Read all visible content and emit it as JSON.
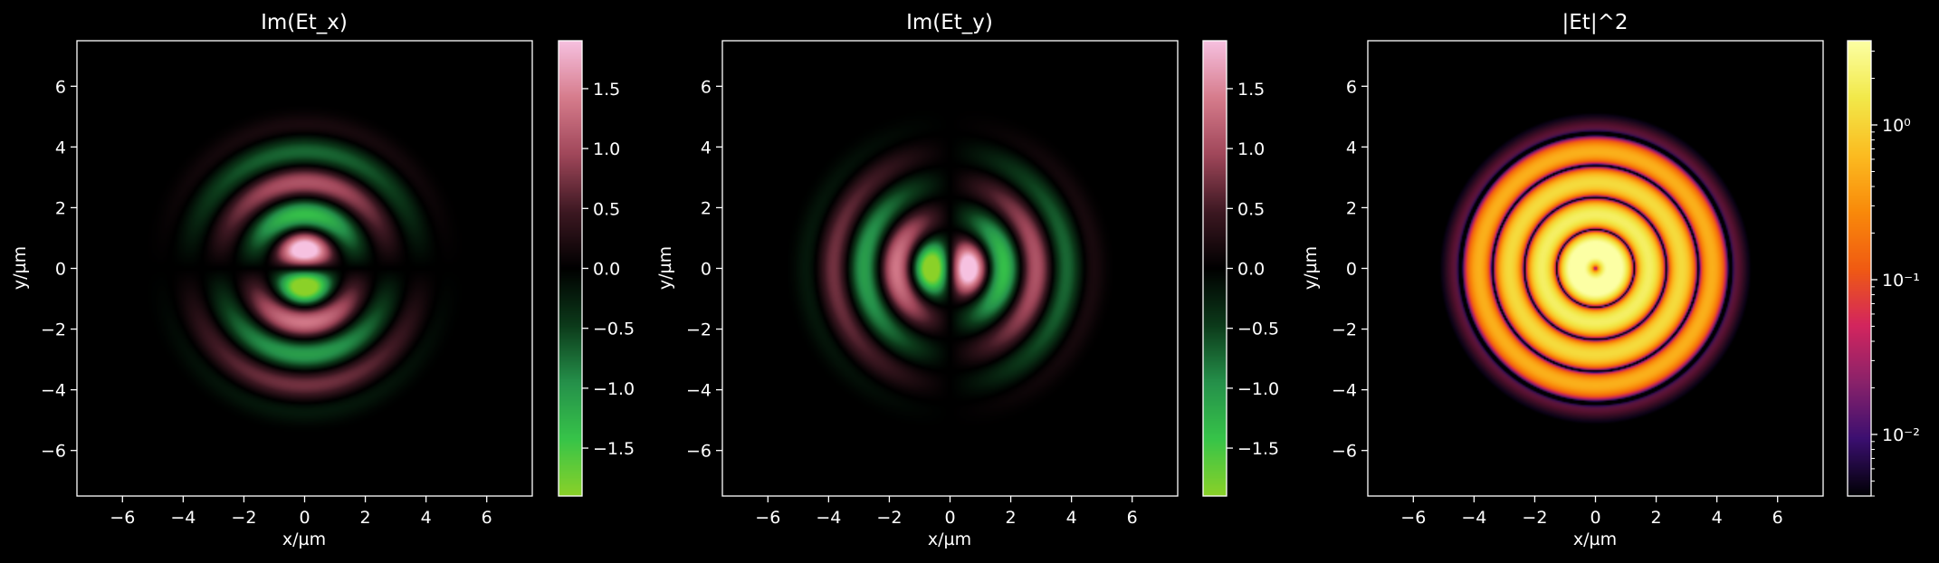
{
  "colors": {
    "background": "#000000",
    "foreground": "#ffffff",
    "piyg": [
      "#8bd128",
      "#37c449",
      "#25904a",
      "#0c3a1a",
      "#000000",
      "#3d1822",
      "#a0475a",
      "#d67c8c",
      "#f6c1e0"
    ],
    "inferno_like": [
      "#000004",
      "#3b0f70",
      "#8a226a",
      "#d3255e",
      "#f05b12",
      "#f98a0a",
      "#fbbc21",
      "#f2e94a",
      "#fcffa4"
    ]
  },
  "chart_data": [
    {
      "type": "heatmap",
      "title": "Im(Et_x)",
      "xlabel": "x/µm",
      "ylabel": "y/µm",
      "xlim": [
        -7.5,
        7.5
      ],
      "ylim": [
        -7.5,
        7.5
      ],
      "xticks": [
        -6,
        -4,
        -2,
        0,
        2,
        4,
        6
      ],
      "yticks": [
        -6,
        -4,
        -2,
        0,
        2,
        4,
        6
      ],
      "field": "im_ex",
      "colormap": "PiYG_r",
      "colorbar": {
        "scale": "linear",
        "range": [
          -1.9,
          1.9
        ],
        "ticks": [
          1.5,
          1.0,
          0.5,
          0.0,
          -0.5,
          -1.0,
          -1.5
        ],
        "tick_labels": [
          "1.5",
          "1.0",
          "0.5",
          "0.0",
          "−0.5",
          "−1.0",
          "−1.5"
        ]
      },
      "rings": {
        "dark_ring_radii": [
          1.15,
          2.1,
          3.15,
          4.15
        ],
        "envelope_radius": 5.5,
        "peak_values": [
          {
            "label": "upper lobe",
            "x": 0.0,
            "y": 0.6,
            "value": 1.9
          },
          {
            "label": "lower lobe",
            "x": 0.0,
            "y": -0.6,
            "value": -1.9
          }
        ]
      }
    },
    {
      "type": "heatmap",
      "title": "Im(Et_y)",
      "xlabel": "x/µm",
      "ylabel": "y/µm",
      "xlim": [
        -7.5,
        7.5
      ],
      "ylim": [
        -7.5,
        7.5
      ],
      "xticks": [
        -6,
        -4,
        -2,
        0,
        2,
        4,
        6
      ],
      "yticks": [
        -6,
        -4,
        -2,
        0,
        2,
        4,
        6
      ],
      "field": "im_ey",
      "colormap": "PiYG_r",
      "colorbar": {
        "scale": "linear",
        "range": [
          -1.9,
          1.9
        ],
        "ticks": [
          1.5,
          1.0,
          0.5,
          0.0,
          -0.5,
          -1.0,
          -1.5
        ],
        "tick_labels": [
          "1.5",
          "1.0",
          "0.5",
          "0.0",
          "−0.5",
          "−1.0",
          "−1.5"
        ]
      },
      "rings": {
        "dark_ring_radii": [
          1.15,
          2.1,
          3.15,
          4.15
        ],
        "envelope_radius": 5.5,
        "peak_values": [
          {
            "label": "right lobe",
            "x": 0.6,
            "y": 0.0,
            "value": 1.9
          },
          {
            "label": "left lobe",
            "x": -0.6,
            "y": 0.0,
            "value": -1.9
          }
        ]
      }
    },
    {
      "type": "heatmap",
      "title": "|Et|^2",
      "xlabel": "x/µm",
      "ylabel": "y/µm",
      "xlim": [
        -7.5,
        7.5
      ],
      "ylim": [
        -7.5,
        7.5
      ],
      "xticks": [
        -6,
        -4,
        -2,
        0,
        2,
        4,
        6
      ],
      "yticks": [
        -6,
        -4,
        -2,
        0,
        2,
        4,
        6
      ],
      "field": "abs2",
      "colormap": "inferno",
      "colorbar": {
        "scale": "log",
        "range": [
          0.004,
          3.5
        ],
        "ticks": [
          1,
          0.1,
          0.01
        ],
        "tick_labels": [
          "10⁰",
          "10⁻¹",
          "10⁻²"
        ]
      },
      "rings": {
        "dark_ring_radii": [
          1.15,
          2.1,
          3.15,
          4.15
        ],
        "envelope_radius": 5.5,
        "center_value": 0.0
      }
    }
  ]
}
